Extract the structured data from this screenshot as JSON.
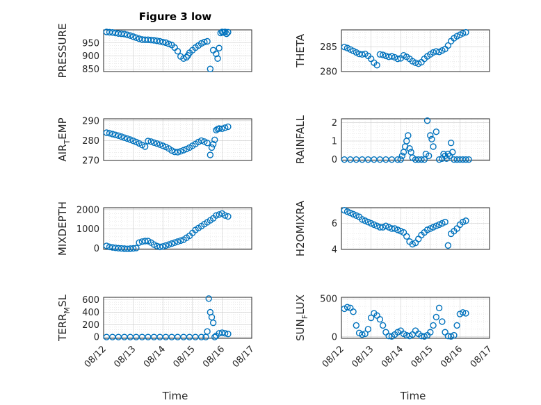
{
  "figure": {
    "title": "Figure 3 low",
    "xlabel": "Time",
    "xticks": [
      "08/12",
      "08/13",
      "08/14",
      "08/15",
      "08/16",
      "08/17"
    ]
  },
  "chart_data": [
    {
      "type": "scatter",
      "name": "pressure",
      "ylabel": "PRESSURE",
      "sub": "",
      "ylabel_after": "",
      "ylim": [
        840,
        1000
      ],
      "yticks": [
        850,
        900,
        950
      ],
      "x": [
        0.1,
        0.2,
        0.3,
        0.4,
        0.5,
        0.6,
        0.7,
        0.8,
        0.9,
        1.0,
        1.1,
        1.2,
        1.3,
        1.4,
        1.5,
        1.6,
        1.7,
        1.8,
        1.9,
        2.0,
        2.1,
        2.2,
        2.3,
        2.4,
        2.5,
        2.6,
        2.7,
        2.8,
        2.85,
        2.9,
        3.0,
        3.1,
        3.2,
        3.3,
        3.4,
        3.5,
        3.6,
        3.7,
        3.8,
        3.85,
        3.9,
        3.95,
        4.0,
        4.05,
        4.1,
        4.15,
        4.2
      ],
      "y": [
        992,
        991,
        990,
        988,
        986,
        985,
        984,
        981,
        978,
        974,
        970,
        966,
        963,
        962,
        962,
        961,
        960,
        958,
        956,
        953,
        951,
        946,
        942,
        932,
        918,
        898,
        890,
        895,
        902,
        912,
        922,
        932,
        940,
        948,
        953,
        956,
        850,
        922,
        908,
        890,
        930,
        988,
        992,
        990,
        992,
        985,
        991
      ]
    },
    {
      "type": "scatter",
      "name": "theta",
      "ylabel": "THETA",
      "sub": "",
      "ylabel_after": "",
      "ylim": [
        280,
        288.5
      ],
      "yticks": [
        280,
        285
      ],
      "x": [
        0.1,
        0.2,
        0.3,
        0.4,
        0.5,
        0.6,
        0.7,
        0.8,
        0.9,
        1.0,
        1.1,
        1.2,
        1.3,
        1.4,
        1.5,
        1.6,
        1.7,
        1.8,
        1.9,
        2.0,
        2.1,
        2.2,
        2.3,
        2.4,
        2.5,
        2.6,
        2.7,
        2.8,
        2.9,
        3.0,
        3.1,
        3.2,
        3.3,
        3.4,
        3.5,
        3.6,
        3.7,
        3.8,
        3.9,
        4.0,
        4.1,
        4.2
      ],
      "y": [
        285,
        284.8,
        284.5,
        284.2,
        283.9,
        283.6,
        283.5,
        283.6,
        283.2,
        282.6,
        281.8,
        281.3,
        283.5,
        283.4,
        283.2,
        283.0,
        283.1,
        282.9,
        282.6,
        282.7,
        283.3,
        283.0,
        282.6,
        282.1,
        281.8,
        281.6,
        281.9,
        282.6,
        283.1,
        283.5,
        283.9,
        284.1,
        284.0,
        284.3,
        284.6,
        285.3,
        286.2,
        286.8,
        287.2,
        287.5,
        287.8,
        288.0
      ]
    },
    {
      "type": "scatter",
      "name": "air_temp",
      "ylabel": "AIR",
      "sub": "T",
      "ylabel_after": "EMP",
      "ylim": [
        270,
        291
      ],
      "yticks": [
        270,
        280,
        290
      ],
      "x": [
        0.1,
        0.2,
        0.3,
        0.4,
        0.5,
        0.6,
        0.7,
        0.8,
        0.9,
        1.0,
        1.1,
        1.2,
        1.3,
        1.4,
        1.5,
        1.6,
        1.7,
        1.8,
        1.9,
        2.0,
        2.1,
        2.2,
        2.3,
        2.4,
        2.5,
        2.6,
        2.7,
        2.8,
        2.9,
        3.0,
        3.1,
        3.2,
        3.3,
        3.4,
        3.5,
        3.6,
        3.65,
        3.7,
        3.75,
        3.8,
        3.85,
        3.9,
        4.0,
        4.1,
        4.2
      ],
      "y": [
        284,
        283.7,
        283.3,
        282.9,
        282.5,
        282.0,
        281.5,
        281.0,
        280.5,
        279.9,
        279.3,
        278.6,
        277.8,
        277.0,
        279.8,
        279.5,
        279.0,
        278.5,
        278.0,
        277.4,
        276.8,
        276.0,
        275.0,
        274.3,
        274.2,
        274.6,
        275.2,
        275.8,
        276.5,
        277.4,
        278.3,
        279.3,
        280.0,
        279.5,
        278.8,
        272.8,
        276.5,
        278.2,
        280.4,
        285.3,
        285.8,
        286.1,
        286.0,
        286.5,
        287.0
      ]
    },
    {
      "type": "scatter",
      "name": "rainfall",
      "ylabel": "RAINFALL",
      "sub": "",
      "ylabel_after": "",
      "ylim": [
        -0.05,
        2.2
      ],
      "yticks": [
        0,
        1,
        2
      ],
      "x": [
        0.1,
        0.3,
        0.5,
        0.7,
        0.9,
        1.1,
        1.3,
        1.5,
        1.7,
        1.9,
        2.0,
        2.05,
        2.1,
        2.15,
        2.2,
        2.25,
        2.3,
        2.35,
        2.4,
        2.5,
        2.6,
        2.7,
        2.8,
        2.85,
        2.9,
        2.95,
        3.0,
        3.05,
        3.1,
        3.2,
        3.3,
        3.4,
        3.45,
        3.5,
        3.55,
        3.6,
        3.65,
        3.7,
        3.75,
        3.8,
        3.9,
        4.0,
        4.1,
        4.2,
        4.3
      ],
      "y": [
        0,
        0,
        0,
        0,
        0,
        0,
        0,
        0,
        0,
        0,
        0,
        0.2,
        0.4,
        0.7,
        1.0,
        1.3,
        0.6,
        0.4,
        0.1,
        0,
        0,
        0,
        0,
        0.3,
        2.1,
        0.2,
        1.3,
        1.1,
        0.7,
        1.5,
        0,
        0.05,
        0.3,
        0.2,
        0.05,
        0.3,
        0.2,
        0.9,
        0.4,
        0,
        0,
        0,
        0,
        0,
        0
      ]
    },
    {
      "type": "scatter",
      "name": "mixdepth",
      "ylabel": "MIXDEPTH",
      "sub": "",
      "ylabel_after": "",
      "ylim": [
        -50,
        2100
      ],
      "yticks": [
        0,
        1000,
        2000
      ],
      "x": [
        0.1,
        0.2,
        0.3,
        0.4,
        0.5,
        0.6,
        0.7,
        0.8,
        0.9,
        1.0,
        1.1,
        1.2,
        1.3,
        1.4,
        1.5,
        1.6,
        1.7,
        1.8,
        1.9,
        2.0,
        2.1,
        2.2,
        2.3,
        2.4,
        2.5,
        2.6,
        2.7,
        2.8,
        2.9,
        3.0,
        3.1,
        3.2,
        3.3,
        3.4,
        3.5,
        3.6,
        3.7,
        3.8,
        3.9,
        4.0,
        4.1,
        4.2
      ],
      "y": [
        130,
        80,
        50,
        30,
        10,
        0,
        -10,
        -20,
        -10,
        0,
        20,
        300,
        350,
        380,
        380,
        300,
        200,
        120,
        80,
        100,
        150,
        200,
        250,
        300,
        350,
        400,
        450,
        550,
        650,
        800,
        950,
        1050,
        1150,
        1250,
        1350,
        1450,
        1550,
        1700,
        1750,
        1800,
        1700,
        1650
      ]
    },
    {
      "type": "scatter",
      "name": "h2omixra",
      "ylabel": "H2OMIXRA",
      "sub": "",
      "ylabel_after": "",
      "ylim": [
        4,
        7.2
      ],
      "yticks": [
        4,
        6
      ],
      "x": [
        0.1,
        0.2,
        0.3,
        0.4,
        0.5,
        0.6,
        0.7,
        0.8,
        0.9,
        1.0,
        1.1,
        1.2,
        1.3,
        1.4,
        1.5,
        1.6,
        1.7,
        1.8,
        1.9,
        2.0,
        2.1,
        2.2,
        2.3,
        2.4,
        2.5,
        2.6,
        2.7,
        2.8,
        2.9,
        3.0,
        3.1,
        3.2,
        3.3,
        3.4,
        3.5,
        3.6,
        3.7,
        3.8,
        3.9,
        4.0,
        4.1,
        4.2
      ],
      "y": [
        7.0,
        6.9,
        6.8,
        6.7,
        6.6,
        6.5,
        6.3,
        6.2,
        6.1,
        6.0,
        5.9,
        5.8,
        5.7,
        5.7,
        5.8,
        5.7,
        5.6,
        5.6,
        5.5,
        5.4,
        5.3,
        5.0,
        4.6,
        4.4,
        4.5,
        4.8,
        5.1,
        5.3,
        5.5,
        5.6,
        5.7,
        5.8,
        5.9,
        6.0,
        6.1,
        4.3,
        5.2,
        5.4,
        5.6,
        5.9,
        6.1,
        6.2
      ]
    },
    {
      "type": "scatter",
      "name": "terr_msl",
      "ylabel": "TERR",
      "sub": "M",
      "ylabel_after": "SL",
      "ylim": [
        -20,
        640
      ],
      "yticks": [
        0,
        200,
        400,
        600
      ],
      "x": [
        0.1,
        0.3,
        0.5,
        0.7,
        0.9,
        1.1,
        1.3,
        1.5,
        1.7,
        1.9,
        2.1,
        2.3,
        2.5,
        2.7,
        2.9,
        3.1,
        3.3,
        3.45,
        3.5,
        3.55,
        3.6,
        3.65,
        3.7,
        3.75,
        3.8,
        3.9,
        4.0,
        4.1,
        4.2
      ],
      "y": [
        0,
        0,
        0,
        0,
        0,
        0,
        0,
        0,
        0,
        0,
        0,
        0,
        0,
        0,
        0,
        0,
        0,
        0,
        90,
        620,
        400,
        320,
        230,
        0,
        20,
        60,
        70,
        60,
        50
      ]
    },
    {
      "type": "scatter",
      "name": "sun_flux",
      "ylabel": "SUN",
      "sub": "F",
      "ylabel_after": "LUX",
      "ylim": [
        -20,
        520
      ],
      "yticks": [
        0,
        500
      ],
      "x": [
        0.1,
        0.2,
        0.3,
        0.4,
        0.5,
        0.6,
        0.7,
        0.8,
        0.9,
        1.0,
        1.1,
        1.2,
        1.3,
        1.4,
        1.5,
        1.6,
        1.7,
        1.8,
        1.9,
        2.0,
        2.1,
        2.2,
        2.3,
        2.4,
        2.5,
        2.6,
        2.7,
        2.8,
        2.9,
        3.0,
        3.1,
        3.2,
        3.3,
        3.4,
        3.5,
        3.6,
        3.7,
        3.8,
        3.9,
        4.0,
        4.1,
        4.2
      ],
      "y": [
        370,
        390,
        380,
        330,
        150,
        50,
        30,
        40,
        100,
        250,
        310,
        280,
        230,
        150,
        60,
        10,
        5,
        30,
        60,
        80,
        40,
        20,
        10,
        30,
        80,
        40,
        10,
        5,
        20,
        60,
        150,
        260,
        380,
        200,
        60,
        10,
        5,
        20,
        150,
        300,
        320,
        310
      ]
    }
  ]
}
